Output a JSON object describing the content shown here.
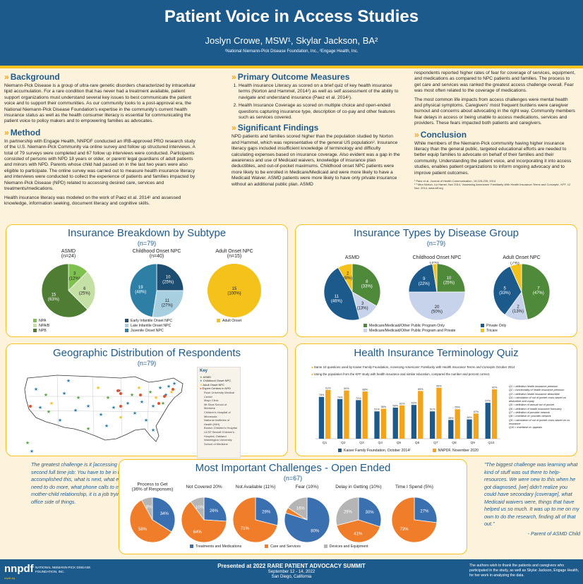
{
  "header": {
    "title": "Patient Voice in Access Studies",
    "authors": "Joslyn Crowe, MSW¹, Skylar Jackson, BA²",
    "affiliations": "¹National Niemann-Pick Disease Foundation, Inc., ²Engage Health, Inc."
  },
  "background": {
    "heading": "Background",
    "text": "Niemann-Pick Disease is a group of ultra-rare genetic disorders characterized by intracellular lipid accumulation. For a rare condition that has never had a treatment available, patient support organizations must understand several key issues to best communicate the patient voice and to support their communities. As our community looks to a post-approval era, the National Niemann-Pick Disease Foundation's expertise in the community's current health insurance status as well as the health consumer literacy is essential for communicating the patient voice to policy makers and to empowering families as advocates."
  },
  "method": {
    "heading": "Method",
    "p1": "In partnership with Engage Health, NNPDF conducted an IRB-approved PRO research study of the U.S. Niemann-Pick Community via online survey and follow up structured interviews. A total of 79 surveys were completed and 67 follow up interviews were conducted. Participants consisted of persons with NPD 18 years or older, or parent/ legal guardians of adult patients and minors with NPD. Parents whose child had passed on in the last two years were also eligible to participate. The online survey was carried out to measure health insurance literacy and interviews were conducted to collect the experience of patients and families impacted by Niemann-Pick Disease (NPD) related to accessing desired care, services and treatments/medications.",
    "p2": "Health insurance literacy was modeled on the work of Paez et al. 2014¹ and assessed knowledge, information seeking, document literacy and cognitive skills."
  },
  "primary": {
    "heading": "Primary Outcome Measures",
    "items": [
      "Health insurance Literacy as scored on a brief quiz of key health insurance terms (Norton and Hammel, 2014²) as well as self assessment of the ability to navigate and understand insurance (Paez et al. 2014¹).",
      "Health Insurance Coverage as scored on multiple choice and open-ended questions capturing insurance type, description of co-pay and other features such as services covered."
    ]
  },
  "findings": {
    "heading": "Significant Findings",
    "text": "NPD patients and families scored higher than the population studied by Norton and Hammel, which was representative of the general US population². Insurance literacy gaps included insufficient knowledge of terminology and difficulty calculating expenses based on insurance coverage. Also evident was a gap in the awareness and use of Medicaid waivers, knowledge of insurance plan deductibles, and out-of-pocket maximums. Childhood onset NPC patients were more likely to be enrolled in Medicare/Medicaid and were more likely to have a Medicaid Waiver. ASMD patients were more likely to have only private insurance without an additional public plan. ASMD"
  },
  "col3": {
    "p1": "respondents reported higher rates of fear for coverage of services, equipment, and medications as compared to NPC patients and families. The process to get care and services was ranked the greatest access challenge overall. Fear was most often related to the coverage of medications.",
    "p2": "The most common life impacts from access challenges were mental health and physical symptoms. Caregivers' most frequent burdens were caregiver burnout and concerns about advocating in the right way. Community members fear delays in access or being unable to access medications, services and providers. These fears impacted both patients and caregivers."
  },
  "conclusion": {
    "heading": "Conclusion",
    "text": "While members of the Niemann-Pick community having higher insurance literacy than the general public, targeted educational efforts are needed to better equip families to advocate on behalf of their families and their community. Understanding the patient voice, and incorporating it into access studies, enables patient organizations to inform ongoing advocacy and to improve patient outcomes.",
    "ref1": "¹ Paez et al. Journal of Health Communication, 19:225-239, 2014",
    "ref2": "² ³ Mira Norton, Liz Hamel, Nov 2014, 'Assessing Americans' Familiarity With Health Insurance Terms and Concepts', KFF, 12 Nov. 2014, www.kff.org"
  },
  "subtype": {
    "title": "Insurance Breakdown by Subtype",
    "n": "(n=79)",
    "pies": [
      {
        "name": "ASMD",
        "n": "(n=24)",
        "values": [
          3,
          6,
          15
        ],
        "labels": [
          "3\n(12%)",
          "6\n(25%)",
          "15\n(63%)"
        ],
        "colors": [
          "#7ec14f",
          "#c5e0a5",
          "#4e7d33"
        ]
      },
      {
        "name": "Childhood Onset NPC",
        "n": "(n=40)",
        "values": [
          10,
          11,
          19
        ],
        "labels": [
          "10\n(25%)",
          "11\n(27%)",
          "19\n(48%)"
        ],
        "colors": [
          "#1d4e72",
          "#a8cfe0",
          "#2e7fa6"
        ]
      },
      {
        "name": "Adult Onset NPC",
        "n": "(n=15)",
        "values": [
          15
        ],
        "labels": [
          "15\n(100%)"
        ],
        "colors": [
          "#f4c21a"
        ]
      }
    ],
    "legend1": [
      "NPA",
      "NPA/B",
      "NPB"
    ],
    "legend1_colors": [
      "#7ec14f",
      "#c5e0a5",
      "#4e7d33"
    ],
    "legend2": [
      "Early Infantile Onset NPC",
      "Late Infantile Onset NPC",
      "Juvenile Onset NPC"
    ],
    "legend2_colors": [
      "#1d4e72",
      "#a8cfe0",
      "#2e7fa6"
    ],
    "legend3": [
      "Adult Onset"
    ],
    "legend3_colors": [
      "#f4c21a"
    ]
  },
  "types": {
    "title": "Insurance Types by Disease Group",
    "n": "(n=79)",
    "groups": [
      "ASMD",
      "Childhood Onset NPC",
      "Adult Onset NPC"
    ],
    "pies": [
      {
        "values": [
          8,
          3,
          11,
          2
        ],
        "labels": [
          "8\n(33%)",
          "3\n(13%)",
          "11\n(46%)",
          "2\n(8%)"
        ]
      },
      {
        "values": [
          10,
          20,
          9,
          1
        ],
        "labels": [
          "10\n(25%)",
          "20\n(50%)",
          "9\n(22%)",
          "1\n(3%)"
        ]
      },
      {
        "values": [
          7,
          2,
          5,
          1
        ],
        "labels": [
          "7\n(47%)",
          "2\n(13%)",
          "5\n(33%)",
          "1\n(7%)"
        ]
      }
    ],
    "colors": [
      "#4e8a3a",
      "#c7d3ea",
      "#1d5a8c",
      "#f4c21a"
    ],
    "legend": [
      "Medicare/Medicaid/Other Public Program Only",
      "Private Only",
      "Medicare/Medicaid/Other Public Program and Private",
      "Tricare"
    ]
  },
  "geo": {
    "title": "Geographic Distribution of Respondents",
    "n": "(n=79)",
    "key_title": "Key",
    "key_items": [
      "ASMD",
      "Childhood Onset NPC",
      "Adult Onset NPC",
      "Expert Centers in NPD"
    ],
    "key_colors": [
      "#5aa34a",
      "#2e7fa6",
      "#f4c21a",
      "#e8502a"
    ],
    "centers": [
      "Rush University Medical Center",
      "Mayo Clinic",
      "Mt Sinai School of Medicine",
      "Children's Hospital of Minnesota",
      "National Institutes of Health (NIH)",
      "Boston Children's Hospital",
      "UCSF Benioff Children's Hospital, Oakland",
      "Washington University School of Medicine"
    ]
  },
  "quiz": {
    "title": "Health Insurance Terminology Quiz",
    "note1_a": "Same 10 questions used by Kaiser Family Foundation, ",
    "note1_b": "Assessing Americans' Familiarity with Health Insurance Terms and Concepts",
    "note1_c": " October 2014",
    "note2": "Using the population from the KFF study with health insurance and similar education, compared the number and percent correct.",
    "questions": [
      "Q1 = definition health insurance premium",
      "Q2 = functionality of health insurance premium",
      "Q3 = definition health insurance deductible",
      "Q4 = calculation of out of pocket costs based on deductible and copay",
      "Q5 = definition of annual out of pocket",
      "Q6 = definition of health insurance formulary",
      "Q7 = definition of provider network",
      "Q8 = true/false re: provider network",
      "Q9 = calculation of out of pocket costs based on co-insurance",
      "Q10 = true/false re: appeals"
    ],
    "legend": [
      "Kaiser Family Foundation, October 2014¹",
      "NNPDF, November 2020"
    ]
  },
  "chart_data": {
    "type": "bar",
    "title": "Health Insurance Terminology Quiz",
    "categories": [
      "Q1",
      "Q2",
      "Q3",
      "Q4",
      "Q5",
      "Q6",
      "Q7",
      "Q8",
      "Q9",
      "Q10"
    ],
    "series": [
      {
        "name": "Kaiser Family Foundation, October 2014¹",
        "values": [
          78,
          74,
          72,
          51,
          58,
          63,
          51,
          35,
          36,
          67
        ]
      },
      {
        "name": "NNPDF, November 2020",
        "values": [
          91,
          90,
          88,
          56,
          62,
          89,
          95,
          55,
          47,
          92
        ]
      }
    ],
    "ylim": [
      0,
      100
    ],
    "colors": [
      "#1d5a8c",
      "#f4a41a"
    ]
  },
  "challenges": {
    "title": "Most Important Challenges - Open Ended",
    "n": "(n=67)",
    "pies": [
      {
        "name": "Process to Get\n(36% of Responses)",
        "values": [
          34,
          58,
          8
        ],
        "labels": [
          "34%",
          "58%",
          "8%"
        ]
      },
      {
        "name": "Not Covered 20%",
        "values": [
          26,
          64,
          10
        ],
        "labels": [
          "26%",
          "64%",
          "10%"
        ]
      },
      {
        "name": "Not Available (11%)",
        "values": [
          29,
          71
        ],
        "labels": [
          "29%",
          "71%"
        ]
      },
      {
        "name": "Fear (10%)",
        "values": [
          80,
          4,
          16
        ],
        "labels": [
          "80%",
          "4%",
          "16%"
        ]
      },
      {
        "name": "Delay in Getting (10%)",
        "values": [
          30,
          41,
          29
        ],
        "labels": [
          "30%",
          "41%",
          "29%"
        ]
      },
      {
        "name": "Time I Spend (5%)",
        "values": [
          27,
          73
        ],
        "labels": [
          "27%",
          "73%"
        ]
      }
    ],
    "colors": [
      "#3a6fb0",
      "#ef7d2a",
      "#b5b5b5"
    ],
    "legend": [
      "Treatments and Medications",
      "Care and Services",
      "Devices and Equipment"
    ]
  },
  "quotes": {
    "left": "The greatest challenge is it [accessing care] turns into a second full time job: You have to be in the mindset of \"we accomplished this, what is next, what else can I do, what do I need to do more, what phone calls to make?\" Instead of a mother-child relationship, it is a job trying to manage the office side of things.",
    "left_attr": "- Parent of NPC Child",
    "right": "\"The biggest challenge was learning what kind of stuff was out there to help- resources. We were new to this when he got diagnosed, [we] didn't realize you could have secondary [coverage], what Medicaid waivers were, things that have helped us so much. It was up to me on my own to do the research, finding all of that out.\"",
    "right_attr": "- Parent of ASMD Child"
  },
  "footer": {
    "logo_mark": "nnpdf",
    "logo_name": "NATIONAL NIEMANN-PICK DISEASE FOUNDATION, INC.",
    "logo_url": "nnpdf.org",
    "presented": "Presented at 2022 RARE PATIENT ADVOCACY SUMMIT",
    "dates": "September 12 - 14, 2022",
    "place": "San Diego, California",
    "ack": "The authors wish to thank the patients and caregivers who participated in the study, as well as Skylar Jackson, Engage Health, for her work in analyzing the data."
  }
}
